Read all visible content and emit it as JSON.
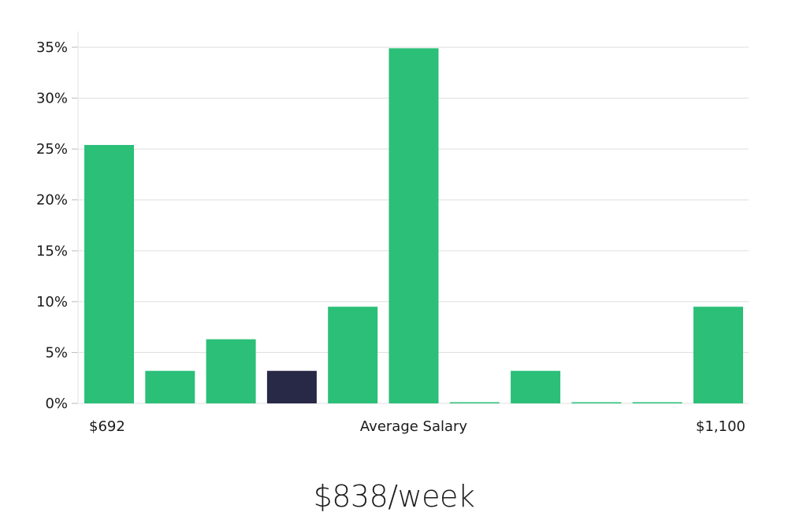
{
  "chart_data": {
    "type": "bar",
    "y_ticks": [
      "0%",
      "5%",
      "10%",
      "15%",
      "20%",
      "25%",
      "30%",
      "35%"
    ],
    "ylim": [
      0,
      36.5
    ],
    "values": [
      25.4,
      3.2,
      6.3,
      3.2,
      9.5,
      34.9,
      0,
      3.2,
      0,
      0,
      9.5
    ],
    "highlight_index": 3,
    "x_labels": {
      "left": "$692",
      "center": "Average Salary",
      "right": "$1,100"
    },
    "grid": true,
    "colors": {
      "bar": "#2bbf78",
      "highlight": "#282847",
      "grid": "#dddddd"
    }
  },
  "salary_label": "$838/week"
}
